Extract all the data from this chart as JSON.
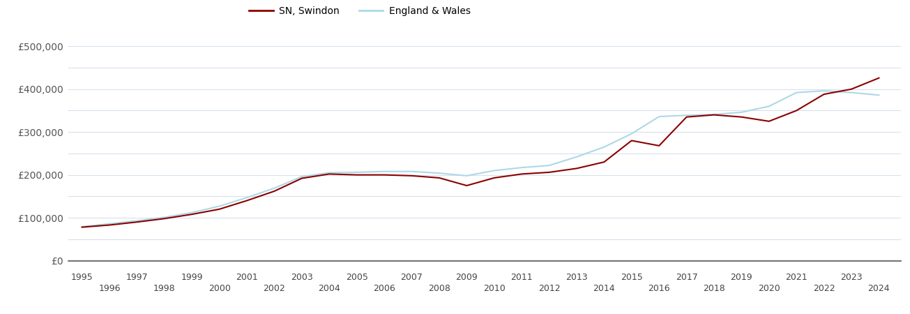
{
  "swindon_label": "SN, Swindon",
  "england_label": "England & Wales",
  "swindon_color": "#8B0000",
  "england_color": "#add8e6",
  "background_color": "#ffffff",
  "grid_color": "#d8e0ec",
  "years": [
    1995,
    1996,
    1997,
    1998,
    1999,
    2000,
    2001,
    2002,
    2003,
    2004,
    2005,
    2006,
    2007,
    2008,
    2009,
    2010,
    2011,
    2012,
    2013,
    2014,
    2015,
    2016,
    2017,
    2018,
    2019,
    2020,
    2021,
    2022,
    2023,
    2024
  ],
  "swindon_values": [
    78000,
    83000,
    90000,
    98000,
    108000,
    120000,
    140000,
    162000,
    192000,
    202000,
    200000,
    200000,
    198000,
    193000,
    175000,
    193000,
    202000,
    206000,
    215000,
    230000,
    280000,
    268000,
    335000,
    340000,
    335000,
    325000,
    350000,
    388000,
    400000,
    426000
  ],
  "england_values": [
    79000,
    86000,
    93000,
    101000,
    112000,
    127000,
    147000,
    169000,
    196000,
    205000,
    206000,
    208000,
    208000,
    204000,
    198000,
    210000,
    217000,
    222000,
    242000,
    265000,
    296000,
    336000,
    339000,
    341000,
    346000,
    360000,
    392000,
    396000,
    392000,
    386000
  ],
  "ylim": [
    0,
    520000
  ],
  "yticks": [
    0,
    50000,
    100000,
    150000,
    200000,
    250000,
    300000,
    350000,
    400000,
    450000,
    500000
  ],
  "ytick_labels_major": [
    "£0",
    "£100,000",
    "£200,000",
    "£300,000",
    "£400,000",
    "£500,000"
  ],
  "yticks_major": [
    0,
    100000,
    200000,
    300000,
    400000,
    500000
  ],
  "xticks_odd": [
    1995,
    1997,
    1999,
    2001,
    2003,
    2005,
    2007,
    2009,
    2011,
    2013,
    2015,
    2017,
    2019,
    2021,
    2023
  ],
  "xticks_even": [
    1996,
    1998,
    2000,
    2002,
    2004,
    2006,
    2008,
    2010,
    2012,
    2014,
    2016,
    2018,
    2020,
    2022,
    2024
  ],
  "xlim": [
    1994.5,
    2024.8
  ],
  "line_width": 1.5,
  "tick_fontsize": 9,
  "ytick_fontsize": 10,
  "legend_fontsize": 10
}
